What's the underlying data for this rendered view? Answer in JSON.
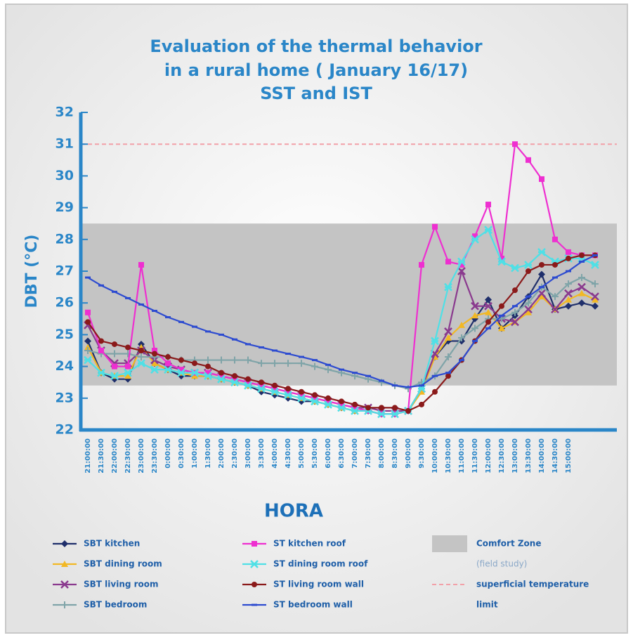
{
  "chart_data": {
    "type": "line",
    "title": [
      "Evaluation of the thermal behavior",
      "in a rural home ( January 16/17)",
      "SST and IST"
    ],
    "x_label": "HORA",
    "y_label": "DBT (°C)",
    "categories": [
      "21:00:00",
      "21:30:00",
      "22:00:00",
      "22:30:00",
      "23:00:00",
      "23:30:00",
      "0:00:00",
      "0:30:00",
      "1:00:00",
      "1:30:00",
      "2:00:00",
      "2:30:00",
      "3:00:00",
      "3:30:00",
      "4:00:00",
      "4:30:00",
      "5:00:00",
      "5:30:00",
      "6:00:00",
      "6:30:00",
      "7:00:00",
      "7:30:00",
      "8:00:00",
      "8:30:00",
      "9:00:00",
      "9:30:00",
      "10:00:00",
      "10:30:00",
      "11:00:00",
      "11:30:00",
      "12:00:00",
      "12:30:00",
      "13:00:00",
      "13:30:00",
      "14:00:00",
      "14:30:00",
      "15:00:00",
      null,
      null
    ],
    "ylim": [
      22,
      32
    ],
    "yticks": [
      22,
      23,
      24,
      25,
      26,
      27,
      28,
      29,
      30,
      31,
      32
    ],
    "comfort_zone": {
      "name": "Comfort Zone",
      "note": "(field study)",
      "range": [
        23.4,
        28.5
      ],
      "color": "#c4c4c4"
    },
    "limit": {
      "name": "superficial temperature",
      "name2": "limit",
      "value": 31,
      "color": "#f2a0a8"
    },
    "series": [
      {
        "name": "SBT kitchen",
        "color": "#1f2f6b",
        "marker": "diamond",
        "values": [
          24.8,
          23.8,
          23.6,
          23.6,
          24.7,
          24.1,
          23.9,
          23.7,
          23.7,
          23.7,
          23.6,
          23.5,
          23.4,
          23.2,
          23.1,
          23.0,
          22.9,
          22.9,
          22.8,
          22.7,
          22.6,
          22.6,
          22.5,
          22.5,
          22.6,
          23.3,
          24.3,
          24.8,
          24.8,
          25.5,
          26.1,
          25.2,
          25.6,
          26.2,
          26.9,
          25.8,
          25.9,
          26.0,
          25.9
        ]
      },
      {
        "name": "SBT dining room",
        "color": "#f2b824",
        "marker": "triangle",
        "values": [
          24.6,
          23.8,
          23.7,
          23.7,
          24.6,
          24.1,
          23.9,
          23.8,
          23.7,
          23.7,
          23.6,
          23.5,
          23.4,
          23.3,
          23.2,
          23.1,
          23.0,
          22.9,
          22.8,
          22.7,
          22.6,
          22.6,
          22.5,
          22.5,
          22.6,
          23.2,
          24.3,
          24.9,
          25.3,
          25.6,
          25.7,
          25.2,
          25.4,
          25.7,
          26.2,
          25.8,
          26.1,
          26.3,
          26.1
        ]
      },
      {
        "name": "SBT living room",
        "color": "#8a3a8e",
        "marker": "x",
        "values": [
          25.3,
          24.5,
          24.1,
          24.1,
          24.5,
          24.2,
          24.0,
          23.9,
          23.8,
          23.8,
          23.7,
          23.6,
          23.5,
          23.4,
          23.3,
          23.2,
          23.1,
          23.0,
          22.9,
          22.8,
          22.7,
          22.7,
          22.6,
          22.6,
          22.6,
          23.3,
          24.4,
          25.1,
          27.0,
          25.9,
          25.9,
          25.5,
          25.4,
          25.8,
          26.3,
          25.8,
          26.3,
          26.5,
          26.2
        ]
      },
      {
        "name": "SBT bedroom",
        "color": "#7fa4a8",
        "marker": "plus",
        "values": [
          24.5,
          24.4,
          24.4,
          24.4,
          24.3,
          24.3,
          24.3,
          24.2,
          24.2,
          24.2,
          24.2,
          24.2,
          24.2,
          24.1,
          24.1,
          24.1,
          24.1,
          24.0,
          23.9,
          23.8,
          23.7,
          23.6,
          23.5,
          23.4,
          23.3,
          23.5,
          23.7,
          24.3,
          24.9,
          25.2,
          25.5,
          25.5,
          25.7,
          26.0,
          26.5,
          26.2,
          26.6,
          26.8,
          26.6
        ]
      },
      {
        "name": "ST kitchen roof",
        "color": "#ee2fd0",
        "marker": "square",
        "values": [
          25.7,
          24.5,
          24.0,
          24.0,
          27.2,
          24.5,
          24.1,
          23.9,
          23.8,
          23.8,
          23.7,
          23.6,
          23.5,
          23.4,
          23.3,
          23.2,
          23.1,
          23.0,
          22.9,
          22.8,
          22.7,
          22.6,
          22.5,
          22.5,
          22.6,
          27.2,
          28.4,
          27.3,
          27.2,
          28.1,
          29.1,
          27.4,
          31.0,
          30.5,
          29.9,
          28.0,
          27.6,
          27.5,
          27.5
        ]
      },
      {
        "name": "ST dining room roof",
        "color": "#4fe0e6",
        "marker": "star",
        "values": [
          24.2,
          23.8,
          23.7,
          23.8,
          24.1,
          23.9,
          23.9,
          23.8,
          23.8,
          23.7,
          23.6,
          23.5,
          23.4,
          23.3,
          23.2,
          23.1,
          23.0,
          22.9,
          22.8,
          22.7,
          22.6,
          22.6,
          22.5,
          22.5,
          22.6,
          23.3,
          24.8,
          26.5,
          27.3,
          28.0,
          28.3,
          27.3,
          27.1,
          27.2,
          27.6,
          27.3,
          27.4,
          27.4,
          27.2
        ]
      },
      {
        "name": "ST living room wall",
        "color": "#8b1a1a",
        "marker": "circle",
        "values": [
          25.4,
          24.8,
          24.7,
          24.6,
          24.5,
          24.4,
          24.3,
          24.2,
          24.1,
          24.0,
          23.8,
          23.7,
          23.6,
          23.5,
          23.4,
          23.3,
          23.2,
          23.1,
          23.0,
          22.9,
          22.8,
          22.7,
          22.7,
          22.7,
          22.6,
          22.8,
          23.2,
          23.7,
          24.2,
          24.8,
          25.4,
          25.9,
          26.4,
          27.0,
          27.2,
          27.2,
          27.4,
          27.5,
          27.5
        ]
      },
      {
        "name": "ST bedroom wall",
        "color": "#2d4bd0",
        "marker": "dash",
        "values": [
          26.8,
          26.55,
          26.35,
          26.15,
          25.95,
          25.75,
          25.55,
          25.4,
          25.25,
          25.1,
          25.0,
          24.85,
          24.7,
          24.6,
          24.5,
          24.4,
          24.3,
          24.2,
          24.05,
          23.9,
          23.8,
          23.7,
          23.55,
          23.4,
          23.35,
          23.4,
          23.7,
          23.8,
          24.2,
          24.8,
          25.2,
          25.6,
          25.9,
          26.2,
          26.5,
          26.8,
          27.0,
          27.3,
          27.5
        ]
      }
    ]
  }
}
